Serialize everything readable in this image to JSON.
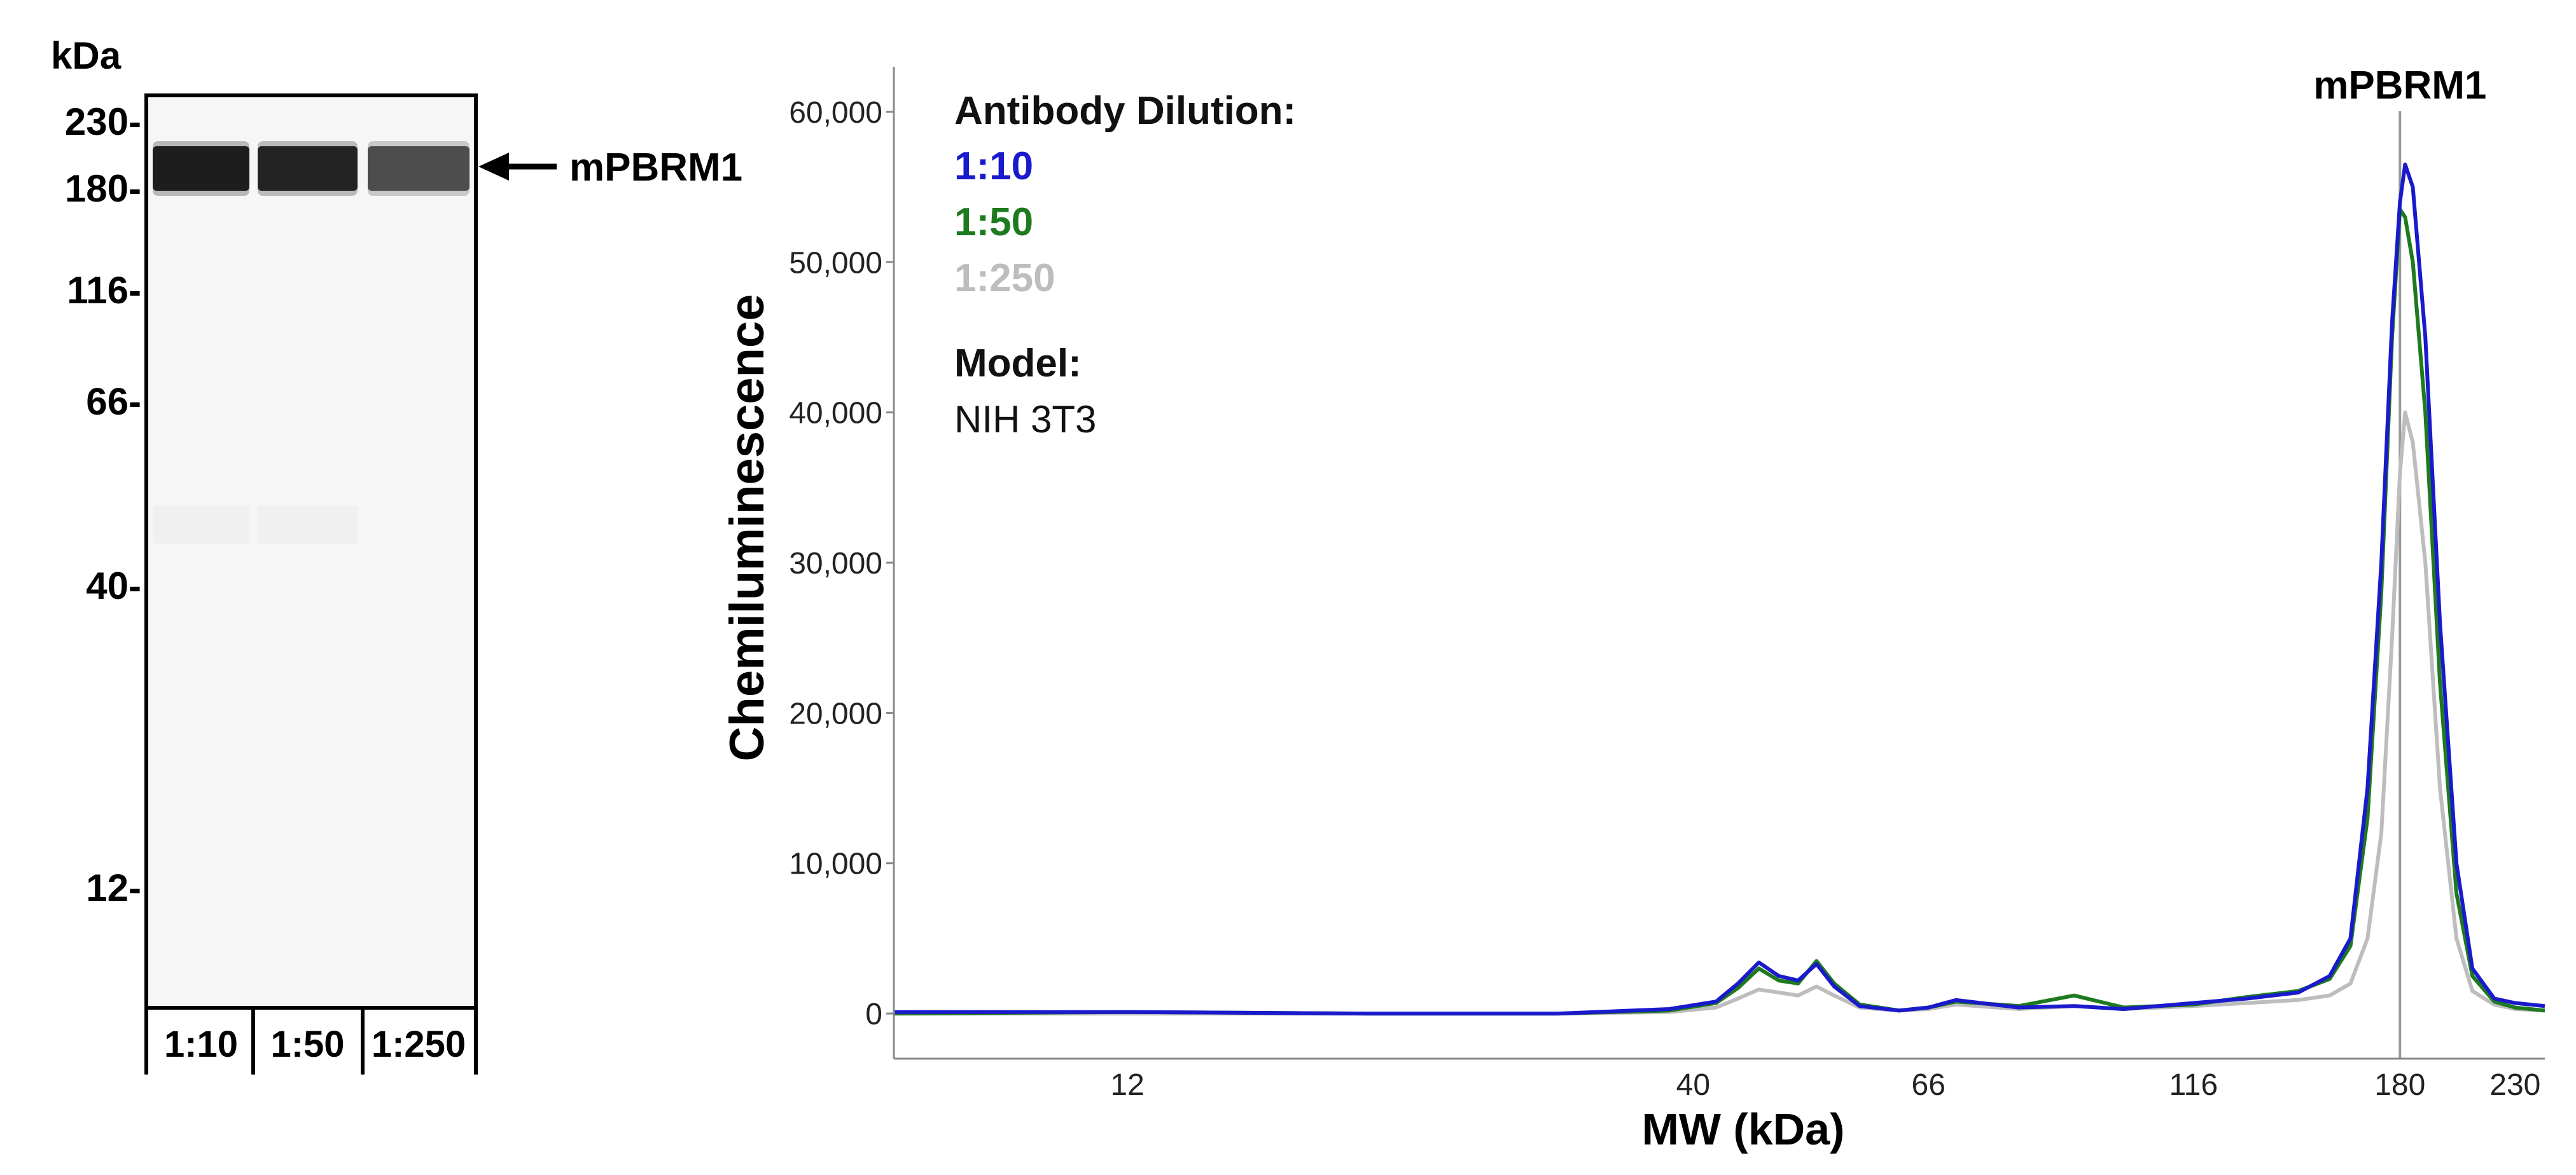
{
  "blot": {
    "unit_label": "kDa",
    "markers": [
      {
        "label": "230-",
        "kda": 230
      },
      {
        "label": "180-",
        "kda": 180
      },
      {
        "label": "116-",
        "kda": 116
      },
      {
        "label": "66-",
        "kda": 66
      },
      {
        "label": "40-",
        "kda": 40
      },
      {
        "label": "12-",
        "kda": 12
      }
    ],
    "lanes": [
      {
        "label": "1:10",
        "band_intensity": 1.0
      },
      {
        "label": "1:50",
        "band_intensity": 0.96
      },
      {
        "label": "1:250",
        "band_intensity": 0.72
      }
    ],
    "band_label": "mPBRM1"
  },
  "chart_data": {
    "type": "line",
    "title": "",
    "peak_label": "mPBRM1",
    "peak_kda": 180,
    "xlabel": "MW (kDa)",
    "ylabel": "Chemiluminescence",
    "x_scale": "log",
    "xlim": [
      7.3,
      245
    ],
    "ylim": [
      -3000,
      63000
    ],
    "x_ticks": [
      {
        "label": "12",
        "value": 12
      },
      {
        "label": "40",
        "value": 40
      },
      {
        "label": "66",
        "value": 66
      },
      {
        "label": "116",
        "value": 116
      },
      {
        "label": "180",
        "value": 180
      },
      {
        "label": "230",
        "value": 230
      }
    ],
    "y_ticks": [
      {
        "label": "0",
        "value": 0
      },
      {
        "label": "10,000",
        "value": 10000
      },
      {
        "label": "20,000",
        "value": 20000
      },
      {
        "label": "30,000",
        "value": 30000
      },
      {
        "label": "40,000",
        "value": 40000
      },
      {
        "label": "50,000",
        "value": 50000
      },
      {
        "label": "60,000",
        "value": 60000
      }
    ],
    "legend": {
      "title": "Antibody Dilution:",
      "entries": [
        "1:10",
        "1:50",
        "1:250"
      ],
      "model_title": "Model:",
      "model_value": "NIH 3T3",
      "placement": "top-left"
    },
    "colors": {
      "1:10": "#1a1acc",
      "1:50": "#1e7a1e",
      "1:250": "#bdbdbd"
    },
    "series": [
      {
        "name": "1:10",
        "x": [
          7.3,
          12,
          20,
          30,
          38,
          42,
          44,
          46,
          48,
          50,
          52,
          54,
          57,
          62,
          66,
          70,
          80,
          90,
          100,
          116,
          130,
          145,
          155,
          162,
          168,
          173,
          177,
          180,
          182,
          185,
          190,
          196,
          203,
          210,
          220,
          230,
          245
        ],
        "y": [
          100,
          100,
          0,
          0,
          300,
          800,
          2000,
          3400,
          2500,
          2200,
          3300,
          1800,
          500,
          200,
          400,
          900,
          400,
          500,
          300,
          700,
          1000,
          1400,
          2500,
          5000,
          15000,
          30000,
          46000,
          54000,
          56500,
          55000,
          45000,
          26000,
          10000,
          3000,
          1000,
          700,
          500
        ]
      },
      {
        "name": "1:50",
        "x": [
          7.3,
          12,
          20,
          30,
          38,
          42,
          44,
          46,
          48,
          50,
          52,
          54,
          57,
          62,
          66,
          70,
          80,
          90,
          100,
          116,
          130,
          145,
          155,
          162,
          168,
          173,
          177,
          180,
          182,
          185,
          190,
          196,
          203,
          210,
          220,
          230,
          245
        ],
        "y": [
          0,
          100,
          0,
          0,
          200,
          700,
          1700,
          3000,
          2200,
          2000,
          3500,
          2000,
          600,
          200,
          400,
          800,
          500,
          1200,
          400,
          600,
          1100,
          1500,
          2300,
          4500,
          13000,
          28000,
          45000,
          53500,
          53000,
          50000,
          40000,
          22000,
          8000,
          2500,
          800,
          400,
          200
        ]
      },
      {
        "name": "1:250",
        "x": [
          7.3,
          12,
          20,
          30,
          38,
          42,
          44,
          46,
          48,
          50,
          52,
          54,
          57,
          62,
          66,
          70,
          80,
          90,
          100,
          116,
          130,
          145,
          155,
          162,
          168,
          173,
          177,
          180,
          182,
          185,
          190,
          196,
          203,
          210,
          220,
          230,
          245
        ],
        "y": [
          0,
          0,
          0,
          0,
          100,
          400,
          1000,
          1600,
          1400,
          1200,
          1800,
          1200,
          400,
          200,
          300,
          600,
          300,
          500,
          300,
          500,
          700,
          900,
          1200,
          2000,
          5000,
          12000,
          25000,
          36000,
          40000,
          38000,
          30000,
          15000,
          5000,
          1500,
          600,
          300,
          200
        ]
      }
    ]
  }
}
